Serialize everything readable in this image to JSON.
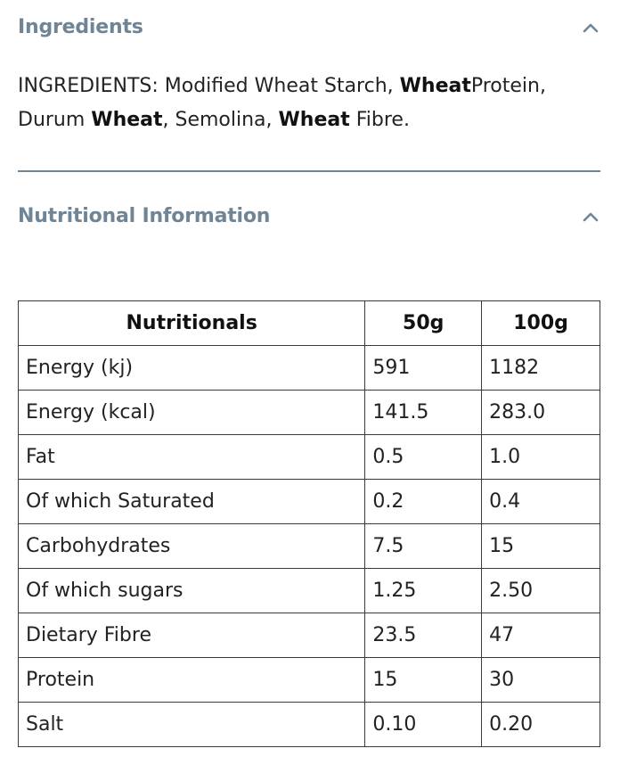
{
  "ingredients": {
    "title": "Ingredients",
    "text_parts": [
      {
        "text": "INGREDIENTS: Modified Wheat Starch, ",
        "bold": false
      },
      {
        "text": "Wheat",
        "bold": true
      },
      {
        "text": "Protein, Durum ",
        "bold": false
      },
      {
        "text": "Wheat",
        "bold": true
      },
      {
        "text": ", Semolina, ",
        "bold": false
      },
      {
        "text": "Wheat",
        "bold": true
      },
      {
        "text": " Fibre.",
        "bold": false
      }
    ],
    "toggle_icon": "chevron-up-icon"
  },
  "nutrition": {
    "title": "Nutritional Information",
    "toggle_icon": "chevron-up-icon",
    "table": {
      "headers": [
        "Nutritionals",
        "50g",
        "100g"
      ],
      "rows": [
        [
          "Energy (kj)",
          "591",
          "1182"
        ],
        [
          "Energy (kcal)",
          "141.5",
          "283.0"
        ],
        [
          "Fat",
          "0.5",
          "1.0"
        ],
        [
          "Of which Saturated",
          "0.2",
          "0.4"
        ],
        [
          "Carbohydrates",
          "7.5",
          "15"
        ],
        [
          "Of which sugars",
          "1.25",
          "2.50"
        ],
        [
          "Dietary Fibre",
          "23.5",
          "47"
        ],
        [
          "Protein",
          "15",
          "30"
        ],
        [
          "Salt",
          "0.10",
          "0.20"
        ]
      ]
    }
  },
  "colors": {
    "heading": "#6f8596",
    "divider": "#6f8596",
    "text": "#232323",
    "table_border": "#3a3a3a"
  }
}
